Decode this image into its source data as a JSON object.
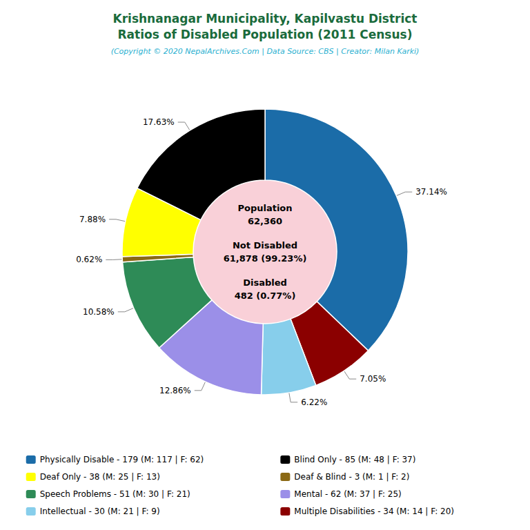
{
  "chart_data": {
    "type": "pie",
    "title": "Krishnanagar Municipality, Kapilvastu District\nRatios of Disabled Population (2011 Census)",
    "subtitle": "(Copyright © 2020 NepalArchives.Com | Data Source: CBS | Creator: Milan Karki)",
    "title_color": "#1a6b3c",
    "subtitle_color": "#2ab0d0",
    "categories": [
      "Physically Disable - 179 (M: 117 | F: 62)",
      "Multiple Disabilities - 34 (M: 14 | F: 20)",
      "Intellectual - 30 (M: 21 | F: 9)",
      "Mental - 62 (M: 37 | F: 25)",
      "Speech Problems - 51 (M: 30 | F: 21)",
      "Deaf & Blind - 3 (M: 1 | F: 2)",
      "Deaf Only - 38 (M: 25 | F: 13)",
      "Blind Only - 85 (M: 48 | F: 37)"
    ],
    "values": [
      37.14,
      7.05,
      6.22,
      12.86,
      10.58,
      0.62,
      7.88,
      17.63
    ],
    "value_labels": [
      "37.14%",
      "7.05%",
      "6.22%",
      "12.86%",
      "10.58%",
      "0.62%",
      "7.88%",
      "17.63%"
    ],
    "colors": [
      "#1b6ca8",
      "#8b0000",
      "#87ceeb",
      "#9b8fe8",
      "#2e8b57",
      "#8b6914",
      "#ffff00",
      "#000000"
    ],
    "data_labels": true,
    "center_color": "#f9d0d8",
    "center_text": [
      "Population",
      "62,360",
      "Not Disabled",
      "61,878 (99.23%)",
      "Disabled",
      "482 (0.77%)"
    ],
    "legend": "bottom",
    "legend_columns": [
      [
        "Physically Disable - 179 (M: 117 | F: 62)",
        "Deaf Only - 38 (M: 25 | F: 13)",
        "Speech Problems - 51 (M: 30 | F: 21)",
        "Intellectual - 30 (M: 21 | F: 9)"
      ],
      [
        "Blind Only - 85 (M: 48 | F: 37)",
        "Deaf & Blind - 3 (M: 1 | F: 2)",
        "Mental - 62 (M: 37 | F: 25)",
        "Multiple Disabilities - 34 (M: 14 | F: 20)"
      ]
    ]
  }
}
